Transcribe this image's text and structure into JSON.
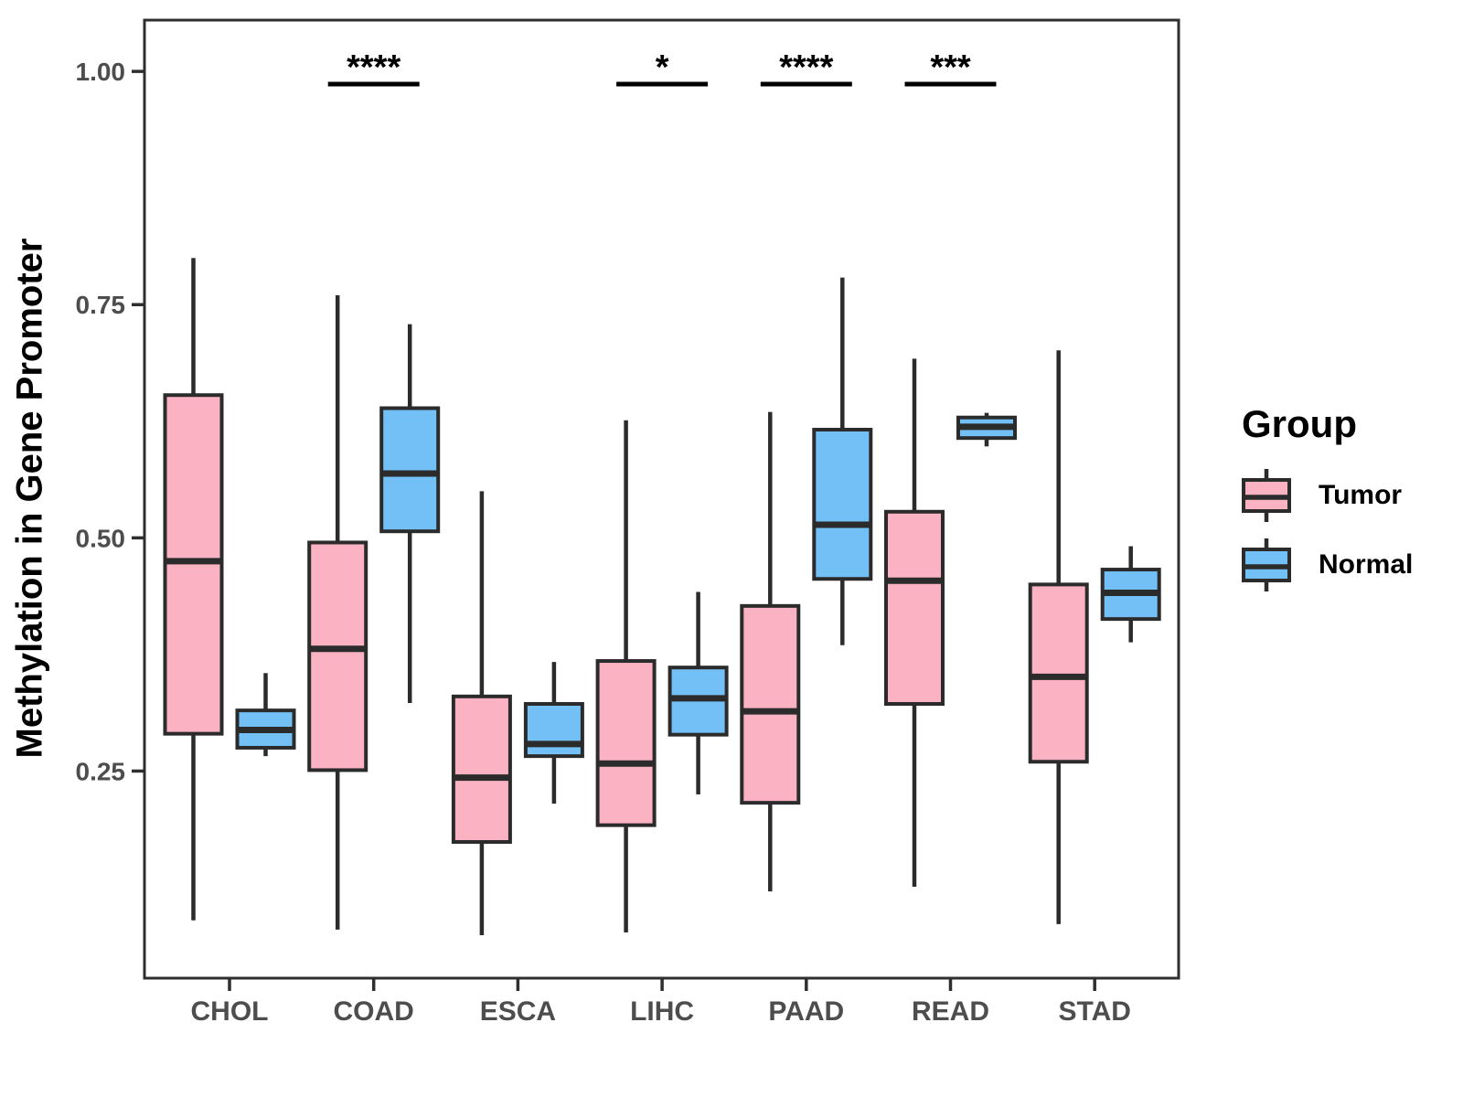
{
  "chart_data": {
    "type": "grouped_boxplot",
    "title": "",
    "xlabel": "",
    "ylabel": "Methylation in Gene Promoter",
    "ylim": [
      0.028,
      1.055
    ],
    "grid": false,
    "y_ticks": [
      {
        "value": 0.25,
        "label": "0.25"
      },
      {
        "value": 0.5,
        "label": "0.50"
      },
      {
        "value": 0.75,
        "label": "0.75"
      },
      {
        "value": 1.0,
        "label": "1.00"
      }
    ],
    "categories": [
      "CHOL",
      "COAD",
      "ESCA",
      "LIHC",
      "PAAD",
      "READ",
      "STAD"
    ],
    "legend": {
      "title": "Group",
      "position": "right",
      "entries": [
        {
          "name": "Tumor",
          "color": "#FBB3C3"
        },
        {
          "name": "Normal",
          "color": "#73C0F6"
        }
      ]
    },
    "series": [
      {
        "name": "Tumor",
        "color": "#FBB3C3",
        "boxes": [
          {
            "category": "CHOL",
            "whisker_low": 0.09,
            "q1": 0.29,
            "median": 0.475,
            "q3": 0.653,
            "whisker_high": 0.8
          },
          {
            "category": "COAD",
            "whisker_low": 0.08,
            "q1": 0.251,
            "median": 0.381,
            "q3": 0.495,
            "whisker_high": 0.76
          },
          {
            "category": "ESCA",
            "whisker_low": 0.074,
            "q1": 0.174,
            "median": 0.243,
            "q3": 0.33,
            "whisker_high": 0.55
          },
          {
            "category": "LIHC",
            "whisker_low": 0.077,
            "q1": 0.192,
            "median": 0.258,
            "q3": 0.368,
            "whisker_high": 0.626
          },
          {
            "category": "PAAD",
            "whisker_low": 0.121,
            "q1": 0.216,
            "median": 0.314,
            "q3": 0.427,
            "whisker_high": 0.635
          },
          {
            "category": "READ",
            "whisker_low": 0.126,
            "q1": 0.322,
            "median": 0.454,
            "q3": 0.528,
            "whisker_high": 0.692
          },
          {
            "category": "STAD",
            "whisker_low": 0.086,
            "q1": 0.26,
            "median": 0.351,
            "q3": 0.45,
            "whisker_high": 0.701
          }
        ]
      },
      {
        "name": "Normal",
        "color": "#73C0F6",
        "boxes": [
          {
            "category": "CHOL",
            "whisker_low": 0.266,
            "q1": 0.275,
            "median": 0.294,
            "q3": 0.315,
            "whisker_high": 0.355
          },
          {
            "category": "COAD",
            "whisker_low": 0.323,
            "q1": 0.507,
            "median": 0.569,
            "q3": 0.639,
            "whisker_high": 0.729
          },
          {
            "category": "ESCA",
            "whisker_low": 0.215,
            "q1": 0.266,
            "median": 0.279,
            "q3": 0.322,
            "whisker_high": 0.367
          },
          {
            "category": "LIHC",
            "whisker_low": 0.225,
            "q1": 0.289,
            "median": 0.328,
            "q3": 0.361,
            "whisker_high": 0.442
          },
          {
            "category": "PAAD",
            "whisker_low": 0.385,
            "q1": 0.456,
            "median": 0.514,
            "q3": 0.616,
            "whisker_high": 0.779
          },
          {
            "category": "READ",
            "whisker_low": 0.598,
            "q1": 0.607,
            "median": 0.619,
            "q3": 0.629,
            "whisker_high": 0.634
          },
          {
            "category": "STAD",
            "whisker_low": 0.388,
            "q1": 0.413,
            "median": 0.441,
            "q3": 0.466,
            "whisker_high": 0.491
          }
        ]
      }
    ],
    "significance": [
      {
        "category": "COAD",
        "label": "****"
      },
      {
        "category": "LIHC",
        "label": "*"
      },
      {
        "category": "PAAD",
        "label": "****"
      },
      {
        "category": "READ",
        "label": "***"
      }
    ],
    "style": {
      "box_border": "#2B2B2B",
      "axis_line": "#2F2F2F",
      "axis_text": "#4D4D4D",
      "sig_color": "#000000",
      "background": "#FFFFFF"
    }
  }
}
